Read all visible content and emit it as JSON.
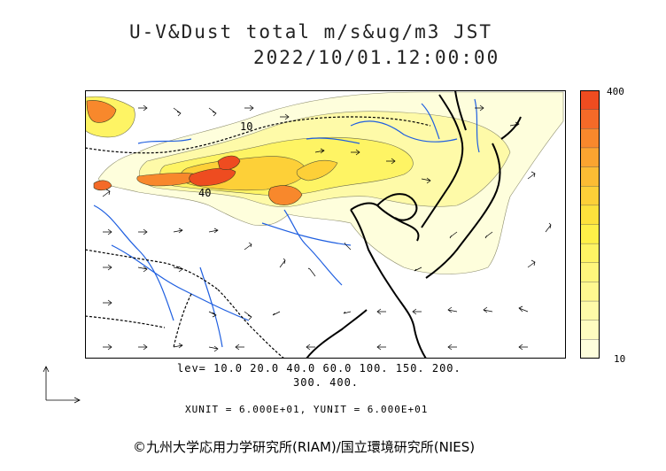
{
  "title": {
    "line1": "U-V&Dust total m/s&ug/m3 JST",
    "line2": "2022/10/01.12:00:00"
  },
  "colorbar": {
    "max_label": "400",
    "min_label": "10",
    "colors": [
      "#fefedc",
      "#fefcc0",
      "#fefaa8",
      "#fef890",
      "#fef67c",
      "#fef464",
      "#fef048",
      "#fde23c",
      "#fdd038",
      "#fcbc34",
      "#fba430",
      "#f8882c",
      "#f46a28",
      "#ee4c20"
    ]
  },
  "contours": {
    "levels_line1": "lev= 10.0 20.0 40.0 60.0 100. 150. 200.",
    "levels_line2": "300. 400.",
    "map_labels": [
      "10",
      "40"
    ]
  },
  "units": {
    "text": "XUNIT = 6.000E+01, YUNIT = 6.000E+01"
  },
  "copyright": "©九州大学応用力学研究所(RIAM)/国立環境研究所(NIES)",
  "palette": {
    "coast": "#000000",
    "river": "#1f5fe0",
    "border": "#000000",
    "vector": "#000000"
  }
}
